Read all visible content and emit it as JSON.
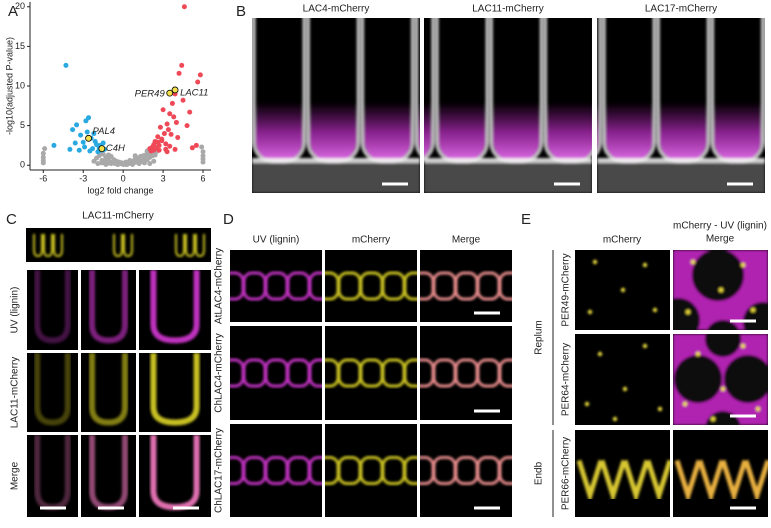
{
  "panel_labels": [
    "A",
    "B",
    "C",
    "D",
    "E"
  ],
  "chart_data": {
    "type": "scatter",
    "x_label": "log2 fold change",
    "y_label": "-log10(adjusted P-value)",
    "xlim": [
      -7,
      6.6
    ],
    "ylim": [
      -0.6,
      20.6
    ],
    "xticks": [
      -6,
      -3,
      0,
      3,
      6
    ],
    "yticks": [
      0,
      5,
      10,
      15,
      20
    ],
    "series": [
      {
        "color": "#a9a9a9",
        "x": [
          -6,
          -6,
          -6,
          -6,
          -5.9,
          6,
          6,
          6,
          6,
          5.9,
          -2.2,
          -2.0,
          -1.8,
          -1.6,
          -1.5,
          -1.4,
          -1.3,
          -1.2,
          -1.1,
          -1.0,
          -0.9,
          -0.8,
          -0.7,
          -0.6,
          -0.5,
          -0.4,
          -0.3,
          -0.2,
          -0.1,
          0,
          0.1,
          0.2,
          0.3,
          0.4,
          0.5,
          0.6,
          0.7,
          0.8,
          0.9,
          1.0,
          1.1,
          1.2,
          1.3,
          1.4,
          1.5,
          1.6,
          1.7,
          1.8,
          1.9,
          2.0,
          2.1,
          2.2,
          2.3,
          2.4,
          -1.9,
          -1.6,
          -1.3,
          -0.9,
          -0.4,
          0.2,
          0.7,
          1.2,
          1.6,
          2.0,
          2.3,
          -1.7,
          -1.1,
          0.9,
          1.8,
          2.5
        ],
        "values": [
          0.3,
          0.6,
          1.0,
          1.5,
          2.1,
          0.4,
          0.8,
          1.2,
          1.7,
          2.3,
          0.5,
          0.9,
          1.2,
          0.3,
          1.4,
          0.6,
          1.0,
          0.2,
          0.8,
          0.4,
          1.1,
          0.3,
          0.7,
          0.2,
          0.5,
          0.1,
          0.4,
          0.2,
          0.3,
          0.1,
          0.2,
          0.4,
          0.1,
          0.3,
          0.6,
          0.2,
          0.5,
          0.3,
          0.8,
          0.4,
          0.9,
          0.6,
          1.1,
          0.5,
          1.2,
          0.8,
          1.3,
          0.7,
          1.5,
          1.0,
          1.4,
          1.2,
          1.6,
          1.3,
          0.2,
          0.6,
          0.1,
          0.2,
          0.1,
          0.1,
          0.1,
          0.2,
          0.3,
          0.2,
          0.5,
          1.7,
          1.3,
          1.2,
          1.8,
          1.7
        ]
      },
      {
        "color": "#29a9e1",
        "x": [
          -4.3,
          -5.2,
          -3.8,
          -3.5,
          -3.2,
          -3.0,
          -2.8,
          -2.6,
          -2.4,
          -2.2,
          -2.0,
          -1.8,
          -1.6,
          -1.4,
          -3.6,
          -2.9,
          -2.5,
          -2.1,
          -1.7,
          -4.0,
          -3.3,
          -2.7,
          -2.3,
          -1.9,
          -1.5
        ],
        "values": [
          12.6,
          2.5,
          4.5,
          5.1,
          3.8,
          2.9,
          5.6,
          6.0,
          3.4,
          4.0,
          2.6,
          2.2,
          1.9,
          2.0,
          2.8,
          2.3,
          1.8,
          3.0,
          2.5,
          2.0,
          1.9,
          4.2,
          2.1,
          1.7,
          2.8
        ]
      },
      {
        "color": "#ef4957",
        "x": [
          4.6,
          4.4,
          5.6,
          5.8,
          4.2,
          3.9,
          3.7,
          3.5,
          3.3,
          3.1,
          2.9,
          2.7,
          2.5,
          2.3,
          2.1,
          3.8,
          3.4,
          3.0,
          2.6,
          2.2,
          4.0,
          3.6,
          3.2,
          2.8,
          2.4,
          4.5,
          5.0,
          5.5,
          3.9,
          3.3,
          2.7,
          2.0,
          2.3,
          2.6,
          2.9,
          3.2,
          3.5,
          4.1,
          4.8,
          5.2
        ],
        "values": [
          20.0,
          12.6,
          10.5,
          11.4,
          11.6,
          9.0,
          7.8,
          6.5,
          5.2,
          4.0,
          3.1,
          2.5,
          2.2,
          1.9,
          1.8,
          6.1,
          4.5,
          7.0,
          3.6,
          2.3,
          5.4,
          3.9,
          2.7,
          4.8,
          3.0,
          8.2,
          6.7,
          2.5,
          2.0,
          1.7,
          1.9,
          2.1,
          2.6,
          2.9,
          3.3,
          2.0,
          2.4,
          3.5,
          5.0,
          2.2
        ]
      },
      {
        "color": "#f5e04a",
        "labels": [
          "PAL4",
          "C4H",
          "PER49",
          "LAC11"
        ],
        "x": [
          -2.6,
          -1.6,
          3.5,
          3.9
        ],
        "values": [
          3.4,
          2.1,
          9.1,
          9.5
        ]
      }
    ]
  },
  "panel_b": {
    "titles": [
      "LAC4-mCherry",
      "LAC11-mCherry",
      "LAC17-mCherry"
    ]
  },
  "panel_c": {
    "title": "LAC11-mCherry",
    "row_labels": [
      "UV (lignin)",
      "LAC11-mCherry",
      "Merge"
    ]
  },
  "panel_d": {
    "column_labels": [
      "UV (lignin)",
      "mCherry",
      "Merge"
    ],
    "row_labels": [
      "AtLAC4-mCherry",
      "ChLAC4-mCherry",
      "ChLAC17-mCherry"
    ]
  },
  "panel_e": {
    "column_1": "mCherry",
    "column_2_lines": [
      "mCherry - UV (lignin)",
      "Merge"
    ],
    "row_labels": [
      "PER49-mCherry",
      "PER64-mCherry",
      "PER66-mCherry"
    ],
    "group_labels": [
      "Replum",
      "Endb"
    ]
  }
}
